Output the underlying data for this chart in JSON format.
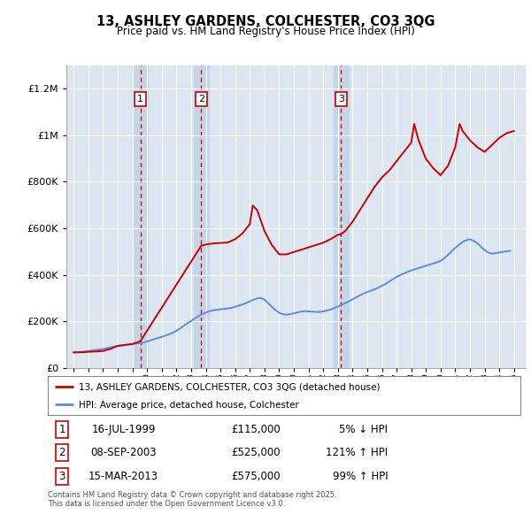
{
  "title": "13, ASHLEY GARDENS, COLCHESTER, CO3 3QG",
  "subtitle": "Price paid vs. HM Land Registry's House Price Index (HPI)",
  "red_label": "13, ASHLEY GARDENS, COLCHESTER, CO3 3QG (detached house)",
  "blue_label": "HPI: Average price, detached house, Colchester",
  "footer": "Contains HM Land Registry data © Crown copyright and database right 2025.\nThis data is licensed under the Open Government Licence v3.0.",
  "transactions": [
    {
      "num": 1,
      "date": "16-JUL-1999",
      "price": "£115,000",
      "hpi_diff": "5% ↓ HPI",
      "year": 1999.54
    },
    {
      "num": 2,
      "date": "08-SEP-2003",
      "price": "£525,000",
      "hpi_diff": "121% ↑ HPI",
      "year": 2003.69
    },
    {
      "num": 3,
      "date": "15-MAR-2013",
      "price": "£575,000",
      "hpi_diff": "99% ↑ HPI",
      "year": 2013.21
    }
  ],
  "background_color": "#ffffff",
  "plot_bg_color": "#dce6f0",
  "grid_color": "#ffffff",
  "red_color": "#cc0000",
  "blue_color": "#5b8dd9",
  "dashed_line_color": "#cc0000",
  "shade_color": "#c5d5e8",
  "ylim": [
    0,
    1300000
  ],
  "yticks": [
    0,
    200000,
    400000,
    600000,
    800000,
    1000000,
    1200000
  ],
  "xlim_start": 1994.5,
  "xlim_end": 2025.8,
  "hpi_years": [
    1995,
    1995.25,
    1995.5,
    1995.75,
    1996,
    1996.25,
    1996.5,
    1996.75,
    1997,
    1997.25,
    1997.5,
    1997.75,
    1998,
    1998.25,
    1998.5,
    1998.75,
    1999,
    1999.25,
    1999.5,
    1999.75,
    2000,
    2000.25,
    2000.5,
    2000.75,
    2001,
    2001.25,
    2001.5,
    2001.75,
    2002,
    2002.25,
    2002.5,
    2002.75,
    2003,
    2003.25,
    2003.5,
    2003.75,
    2004,
    2004.25,
    2004.5,
    2004.75,
    2005,
    2005.25,
    2005.5,
    2005.75,
    2006,
    2006.25,
    2006.5,
    2006.75,
    2007,
    2007.25,
    2007.5,
    2007.75,
    2008,
    2008.25,
    2008.5,
    2008.75,
    2009,
    2009.25,
    2009.5,
    2009.75,
    2010,
    2010.25,
    2010.5,
    2010.75,
    2011,
    2011.25,
    2011.5,
    2011.75,
    2012,
    2012.25,
    2012.5,
    2012.75,
    2013,
    2013.25,
    2013.5,
    2013.75,
    2014,
    2014.25,
    2014.5,
    2014.75,
    2015,
    2015.25,
    2015.5,
    2015.75,
    2016,
    2016.25,
    2016.5,
    2016.75,
    2017,
    2017.25,
    2017.5,
    2017.75,
    2018,
    2018.25,
    2018.5,
    2018.75,
    2019,
    2019.25,
    2019.5,
    2019.75,
    2020,
    2020.25,
    2020.5,
    2020.75,
    2021,
    2021.25,
    2021.5,
    2021.75,
    2022,
    2022.25,
    2022.5,
    2022.75,
    2023,
    2023.25,
    2023.5,
    2023.75,
    2024,
    2024.25,
    2024.5,
    2024.75
  ],
  "hpi_values": [
    67000,
    68000,
    69500,
    71000,
    73000,
    75000,
    77000,
    79500,
    82000,
    85000,
    89000,
    92000,
    95000,
    97000,
    99000,
    101000,
    103000,
    105000,
    107000,
    109000,
    114000,
    119000,
    124000,
    129000,
    134000,
    139000,
    145000,
    152000,
    160000,
    170000,
    181000,
    192000,
    202000,
    213000,
    222000,
    231000,
    238000,
    244000,
    248000,
    250000,
    252000,
    254000,
    256000,
    258000,
    263000,
    268000,
    273000,
    279000,
    286000,
    293000,
    299000,
    301000,
    294000,
    279000,
    263000,
    249000,
    237000,
    231000,
    229000,
    231000,
    235000,
    239000,
    242000,
    244000,
    243000,
    242000,
    241000,
    241000,
    243000,
    247000,
    251000,
    257000,
    264000,
    271000,
    279000,
    286000,
    295000,
    303000,
    312000,
    320000,
    326000,
    332000,
    338000,
    345000,
    353000,
    361000,
    371000,
    381000,
    391000,
    399000,
    406000,
    413000,
    419000,
    424000,
    429000,
    434000,
    439000,
    444000,
    449000,
    454000,
    460000,
    471000,
    486000,
    501000,
    516000,
    529000,
    541000,
    549000,
    553000,
    546000,
    536000,
    521000,
    506000,
    496000,
    491000,
    493000,
    496000,
    499000,
    501000,
    503000
  ],
  "red_years": [
    1995,
    1995.5,
    1996,
    1996.5,
    1997,
    1997.5,
    1998,
    1998.5,
    1999,
    1999.54,
    2003.69,
    2004,
    2004.5,
    2005,
    2005.5,
    2006,
    2006.5,
    2007,
    2007.2,
    2007.5,
    2008,
    2008.5,
    2009,
    2009.5,
    2010,
    2010.5,
    2011,
    2011.5,
    2012,
    2012.5,
    2013,
    2013.21,
    2013.5,
    2014,
    2014.5,
    2015,
    2015.5,
    2016,
    2016.5,
    2017,
    2017.5,
    2018,
    2018.2,
    2018.5,
    2019,
    2019.5,
    2020,
    2020.5,
    2021,
    2021.3,
    2021.5,
    2022,
    2022.5,
    2023,
    2023.5,
    2024,
    2024.5,
    2025
  ],
  "red_values": [
    67000,
    67500,
    69500,
    71000,
    73000,
    82000,
    95000,
    99000,
    103000,
    115000,
    525000,
    530000,
    535000,
    537000,
    539000,
    553000,
    578000,
    618000,
    698000,
    678000,
    588000,
    528000,
    488000,
    488000,
    498000,
    508000,
    518000,
    528000,
    538000,
    553000,
    572000,
    575000,
    588000,
    628000,
    678000,
    728000,
    778000,
    818000,
    848000,
    888000,
    928000,
    968000,
    1048000,
    978000,
    898000,
    858000,
    828000,
    868000,
    948000,
    1048000,
    1018000,
    978000,
    948000,
    928000,
    958000,
    988000,
    1008000,
    1018000
  ]
}
